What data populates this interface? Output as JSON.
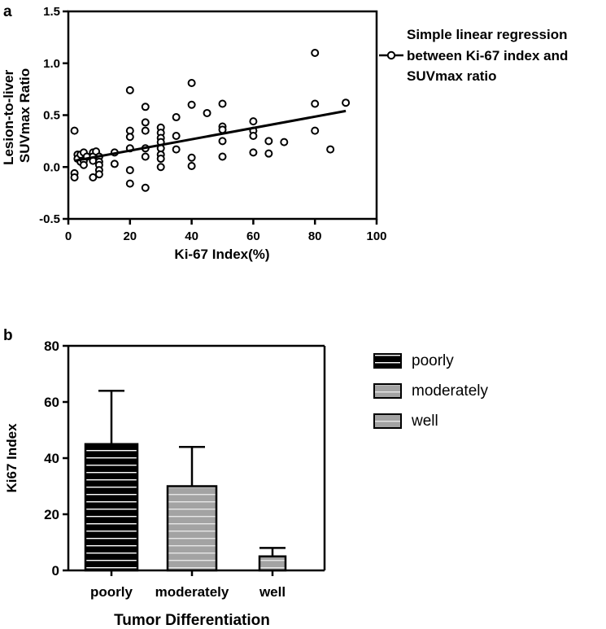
{
  "chart_data": [
    {
      "panel": "a",
      "type": "scatter",
      "title": "",
      "xlabel": "Ki-67 Index(%)",
      "ylabel_lines": [
        "Lesion-to-liver",
        "SUVmax Ratio"
      ],
      "xlim": [
        0,
        100
      ],
      "ylim": [
        -0.5,
        1.5
      ],
      "xticks": [
        0,
        20,
        40,
        60,
        80,
        100
      ],
      "yticks": [
        -0.5,
        0.0,
        0.5,
        1.0,
        1.5
      ],
      "ytick_labels": [
        "-0.5",
        "0.0",
        "0.5",
        "1.0",
        "1.5"
      ],
      "legend_lines": [
        "Simple linear regression",
        "between Ki-67 index and",
        "SUVmax ratio"
      ],
      "regression": {
        "x0": 2,
        "y0": 0.06,
        "x1": 90,
        "y1": 0.54
      },
      "points": [
        [
          2,
          0.35
        ],
        [
          2,
          -0.06
        ],
        [
          2,
          -0.1
        ],
        [
          3,
          0.12
        ],
        [
          3,
          0.08
        ],
        [
          4,
          0.05
        ],
        [
          4,
          0.12
        ],
        [
          5,
          0.14
        ],
        [
          5,
          0.06
        ],
        [
          5,
          0.02
        ],
        [
          6,
          0.1
        ],
        [
          8,
          0.14
        ],
        [
          8,
          0.1
        ],
        [
          8,
          0.06
        ],
        [
          8,
          -0.1
        ],
        [
          9,
          0.15
        ],
        [
          10,
          0.1
        ],
        [
          10,
          0.05
        ],
        [
          10,
          0.02
        ],
        [
          10,
          -0.03
        ],
        [
          10,
          -0.07
        ],
        [
          15,
          0.14
        ],
        [
          15,
          0.03
        ],
        [
          20,
          0.74
        ],
        [
          20,
          0.35
        ],
        [
          20,
          0.29
        ],
        [
          20,
          0.18
        ],
        [
          20,
          -0.03
        ],
        [
          20,
          -0.16
        ],
        [
          25,
          0.58
        ],
        [
          25,
          0.43
        ],
        [
          25,
          0.35
        ],
        [
          25,
          0.18
        ],
        [
          25,
          0.1
        ],
        [
          25,
          -0.2
        ],
        [
          30,
          0.38
        ],
        [
          30,
          0.33
        ],
        [
          30,
          0.28
        ],
        [
          30,
          0.24
        ],
        [
          30,
          0.18
        ],
        [
          30,
          0.12
        ],
        [
          30,
          0.08
        ],
        [
          30,
          0.0
        ],
        [
          35,
          0.48
        ],
        [
          35,
          0.3
        ],
        [
          35,
          0.17
        ],
        [
          40,
          0.81
        ],
        [
          40,
          0.6
        ],
        [
          40,
          0.09
        ],
        [
          40,
          0.01
        ],
        [
          45,
          0.52
        ],
        [
          50,
          0.61
        ],
        [
          50,
          0.39
        ],
        [
          50,
          0.36
        ],
        [
          50,
          0.25
        ],
        [
          50,
          0.1
        ],
        [
          60,
          0.44
        ],
        [
          60,
          0.35
        ],
        [
          60,
          0.3
        ],
        [
          60,
          0.14
        ],
        [
          65,
          0.25
        ],
        [
          65,
          0.13
        ],
        [
          70,
          0.24
        ],
        [
          80,
          1.1
        ],
        [
          80,
          0.61
        ],
        [
          80,
          0.35
        ],
        [
          85,
          0.17
        ],
        [
          90,
          0.62
        ]
      ]
    },
    {
      "panel": "b",
      "type": "bar",
      "title": "",
      "xlabel": "Tumor Differentiation",
      "ylabel": "Ki67 Index",
      "ylim": [
        0,
        80
      ],
      "yticks": [
        0,
        20,
        40,
        60,
        80
      ],
      "categories": [
        "poorly",
        "moderately",
        "well"
      ],
      "values": [
        45,
        30,
        5
      ],
      "error_upper": [
        64,
        44,
        8
      ],
      "fill_colors": [
        "#000000",
        "#a0a0a0",
        "#a0a0a0"
      ],
      "legend": [
        "poorly",
        "moderately",
        "well"
      ]
    }
  ]
}
